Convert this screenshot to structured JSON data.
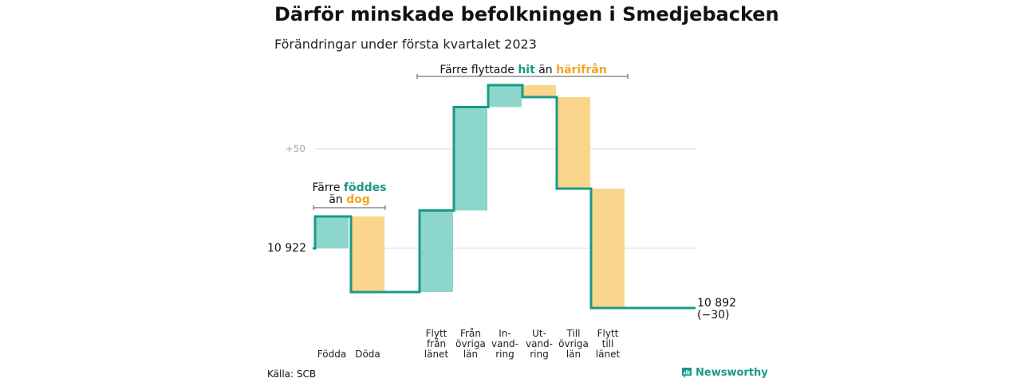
{
  "title": "Därför minskade befolkningen i Smedjebacken",
  "subtitle": "Förändringar under första kvartalet 2023",
  "source": "Källa: SCB",
  "brand": "Newsworthy",
  "colors": {
    "increase_fill": "#8dd6cc",
    "decrease_fill": "#fad68c",
    "line": "#1a9a86",
    "accent_orange": "#f0a524",
    "grid": "#dddddd"
  },
  "annotations": {
    "births": {
      "pre": "Färre ",
      "hl1": "föddes",
      "line2_pre": "än ",
      "hl2": "dog"
    },
    "migration": {
      "pre": "Färre flyttade ",
      "hl1": "hit",
      "mid": " än ",
      "hl2": "härifrån"
    }
  },
  "chart_data": {
    "type": "waterfall",
    "start": {
      "label": "10 922",
      "value": 10922
    },
    "end": {
      "label": "10 892",
      "change_label": "(−30)",
      "value": 10892
    },
    "y_tick": {
      "label": "+50",
      "value": 10972
    },
    "ylim": [
      10860,
      11020
    ],
    "steps": [
      {
        "label_lines": [
          "Födda"
        ],
        "value": 16
      },
      {
        "label_lines": [
          "Döda"
        ],
        "value": -38
      },
      {
        "label_lines": [
          "Flytt",
          "från",
          "länet"
        ],
        "value": 41
      },
      {
        "label_lines": [
          "Från",
          "övriga",
          "län"
        ],
        "value": 52
      },
      {
        "label_lines": [
          "In-",
          "vand-",
          "ring"
        ],
        "value": 11
      },
      {
        "label_lines": [
          "Ut-",
          "vand-",
          "ring"
        ],
        "value": -6
      },
      {
        "label_lines": [
          "Till",
          "övriga",
          "län"
        ],
        "value": -46
      },
      {
        "label_lines": [
          "Flytt",
          "till",
          "länet"
        ],
        "value": -60
      }
    ]
  }
}
